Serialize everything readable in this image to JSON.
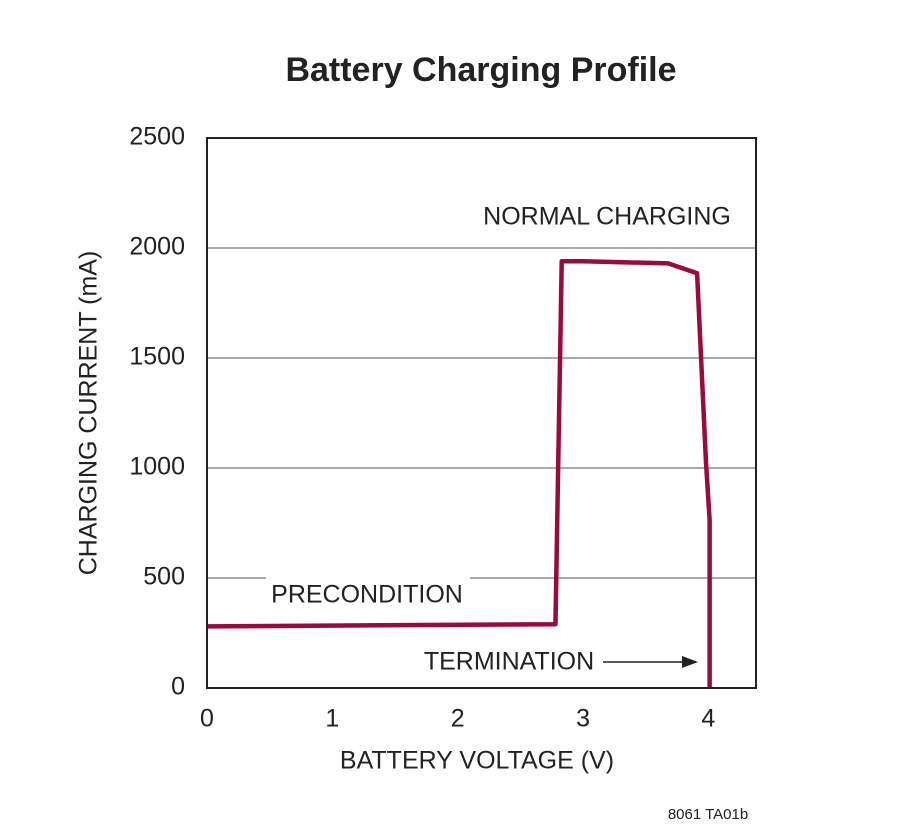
{
  "chart_data": {
    "type": "line",
    "title": "Battery Charging Profile",
    "x_label": "BATTERY VOLTAGE (V)",
    "y_label": "CHARGING CURRENT (mA)",
    "x": [
      0,
      2.78,
      2.83,
      3.0,
      3.68,
      3.91,
      3.98,
      4.01,
      4.01
    ],
    "values": [
      280,
      290,
      1940,
      1940,
      1930,
      1885,
      1036,
      764,
      0
    ],
    "color": "#9b0a3c",
    "xlim": [
      0,
      4.38
    ],
    "xticks": [
      0,
      1,
      2,
      3,
      4
    ],
    "ylim": [
      0,
      2500
    ],
    "yticks": [
      0,
      500,
      1000,
      1500,
      2000,
      2500
    ],
    "grid": true,
    "annotations": [
      "NORMAL CHARGING",
      "PRECONDITION",
      "TERMINATION"
    ],
    "footnote": "8061 TA01b"
  }
}
